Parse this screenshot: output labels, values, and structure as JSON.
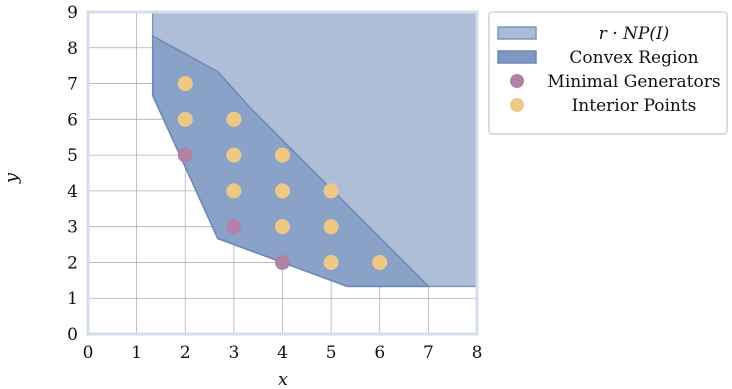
{
  "chart_data": {
    "type": "scatter",
    "xlabel": "x",
    "ylabel": "y",
    "xlim": [
      0,
      8
    ],
    "ylim": [
      0,
      9
    ],
    "x_ticks": [
      "0",
      "1",
      "2",
      "3",
      "4",
      "5",
      "6",
      "7",
      "8"
    ],
    "y_ticks": [
      "0",
      "1",
      "2",
      "3",
      "4",
      "5",
      "6",
      "7",
      "8",
      "9"
    ],
    "grid": true,
    "legend_position": "outside-right",
    "regions": [
      {
        "name": "r · NP(I)",
        "color": "#aabbd6",
        "edge_color": "#7d97c0",
        "vertices": [
          [
            1.33,
            9
          ],
          [
            1.33,
            6.67
          ],
          [
            2.67,
            2.67
          ],
          [
            5.33,
            1.33
          ],
          [
            8,
            1.33
          ],
          [
            8,
            9
          ]
        ]
      },
      {
        "name": "Convex Region",
        "color": "#7e98c3",
        "edge_color": "#6e88b4",
        "vertices": [
          [
            1.33,
            8.33
          ],
          [
            2.67,
            7.33
          ],
          [
            3.33,
            6.33
          ],
          [
            7,
            1.33
          ],
          [
            5.33,
            1.33
          ],
          [
            2.67,
            2.67
          ],
          [
            1.33,
            6.67
          ]
        ]
      }
    ],
    "series": [
      {
        "name": "Minimal Generators",
        "color": "#b181a7",
        "points": [
          [
            2,
            5
          ],
          [
            3,
            3
          ],
          [
            4,
            2
          ]
        ]
      },
      {
        "name": "Interior Points",
        "color": "#edc985",
        "points": [
          [
            2,
            7
          ],
          [
            2,
            6
          ],
          [
            3,
            6
          ],
          [
            3,
            5
          ],
          [
            4,
            5
          ],
          [
            3,
            4
          ],
          [
            4,
            4
          ],
          [
            5,
            4
          ],
          [
            4,
            3
          ],
          [
            5,
            3
          ],
          [
            5,
            2
          ],
          [
            6,
            2
          ]
        ]
      }
    ],
    "colors": {
      "background": "#ffffff",
      "grid": "#b0b0b0",
      "frame": "#d4deeb",
      "legend_frame": "#c8d2e2"
    }
  }
}
